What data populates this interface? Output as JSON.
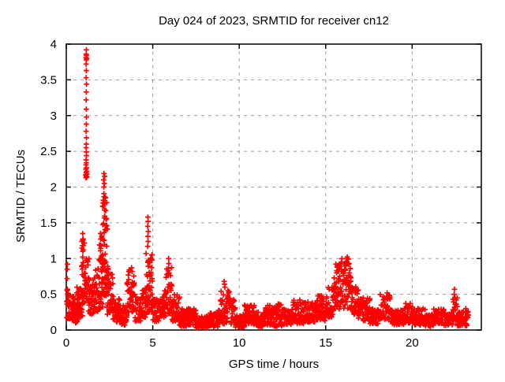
{
  "page_title": "Day 024 of 2023, SRMTID for receiver cn12",
  "chart_data": {
    "type": "scatter",
    "title": "Day 024 of 2023, SRMTID for receiver cn12",
    "xlabel": "GPS time / hours",
    "ylabel": "SRMTID / TECUs",
    "xlim": [
      0,
      24
    ],
    "ylim": [
      0,
      4
    ],
    "xticks": [
      0,
      5,
      10,
      15,
      20
    ],
    "xtick_labels": [
      "0",
      "5",
      "10",
      "15",
      "20"
    ],
    "yticks": [
      0,
      0.5,
      1,
      1.5,
      2,
      2.5,
      3,
      3.5,
      4
    ],
    "ytick_labels": [
      "0",
      "0.5",
      "1",
      "1.5",
      "2",
      "2.5",
      "3",
      "3.5",
      "4"
    ],
    "grid": true,
    "grid_style": "dashed",
    "legend": "none",
    "marker": "plus",
    "marker_color": "#ff0000",
    "border_color": "#000000",
    "grid_color": "#9e9e9e",
    "background_color": "#ffffff",
    "series_name": "SRMTID for receiver cn12",
    "x_data_end": 23.25,
    "y_data_max": 3.92,
    "peak_points": [
      [
        0.07,
        0.92
      ],
      [
        0.06,
        0.85
      ],
      [
        0.05,
        0.72
      ],
      [
        0.95,
        1.35
      ],
      [
        0.96,
        1.26
      ],
      [
        0.94,
        1.18
      ],
      [
        0.96,
        1.1
      ],
      [
        0.95,
        1.02
      ],
      [
        1.16,
        3.92
      ],
      [
        1.15,
        3.86
      ],
      [
        1.17,
        3.84
      ],
      [
        1.14,
        3.81
      ],
      [
        1.18,
        3.8
      ],
      [
        1.16,
        3.78
      ],
      [
        1.15,
        3.72
      ],
      [
        1.16,
        3.63
      ],
      [
        1.15,
        3.53
      ],
      [
        1.17,
        3.44
      ],
      [
        1.16,
        3.33
      ],
      [
        1.15,
        3.22
      ],
      [
        1.16,
        3.09
      ],
      [
        1.17,
        2.98
      ],
      [
        1.16,
        2.88
      ],
      [
        1.15,
        2.78
      ],
      [
        1.17,
        2.69
      ],
      [
        1.16,
        2.6
      ],
      [
        1.15,
        2.55
      ],
      [
        1.16,
        2.49
      ],
      [
        1.17,
        2.44
      ],
      [
        1.15,
        2.38
      ],
      [
        1.16,
        2.34
      ],
      [
        1.14,
        2.31
      ],
      [
        1.17,
        2.27
      ],
      [
        1.13,
        2.25
      ],
      [
        1.18,
        2.22
      ],
      [
        1.15,
        2.2
      ],
      [
        1.2,
        2.18
      ],
      [
        1.12,
        2.17
      ],
      [
        1.16,
        2.15
      ],
      [
        1.19,
        2.14
      ],
      [
        1.14,
        2.13
      ],
      [
        1.98,
        1.35
      ],
      [
        1.99,
        1.27
      ],
      [
        1.97,
        1.19
      ],
      [
        1.98,
        1.11
      ],
      [
        2.18,
        2.19
      ],
      [
        2.22,
        2.15
      ],
      [
        2.16,
        2.1
      ],
      [
        2.2,
        2.05
      ],
      [
        2.17,
        2.0
      ],
      [
        3.78,
        0.87
      ],
      [
        3.8,
        0.82
      ],
      [
        4.72,
        1.58
      ],
      [
        4.73,
        1.52
      ],
      [
        4.71,
        1.45
      ],
      [
        4.74,
        1.38
      ],
      [
        4.72,
        1.31
      ],
      [
        4.73,
        1.24
      ],
      [
        4.71,
        1.17
      ],
      [
        4.95,
        1.05
      ],
      [
        4.96,
        0.98
      ],
      [
        5.92,
        1.0
      ],
      [
        5.93,
        0.93
      ],
      [
        5.91,
        0.86
      ],
      [
        9.13,
        0.68
      ],
      [
        9.15,
        0.64
      ],
      [
        9.17,
        0.6
      ],
      [
        9.35,
        0.55
      ],
      [
        9.38,
        0.52
      ],
      [
        13.5,
        0.42
      ],
      [
        16.25,
        1.02
      ],
      [
        16.3,
        0.99
      ],
      [
        16.2,
        0.96
      ],
      [
        16.35,
        0.93
      ],
      [
        16.15,
        0.9
      ],
      [
        18.55,
        0.52
      ],
      [
        22.45,
        0.57
      ],
      [
        22.43,
        0.5
      ],
      [
        23.1,
        0.3
      ]
    ],
    "density_bands": [
      [
        0.02,
        0.15,
        0.15,
        0.6,
        16
      ],
      [
        0.1,
        0.55,
        0.12,
        0.5,
        40
      ],
      [
        0.35,
        0.75,
        0.1,
        0.45,
        40
      ],
      [
        0.6,
        0.95,
        0.18,
        0.62,
        35
      ],
      [
        0.88,
        1.06,
        0.35,
        1.3,
        22
      ],
      [
        1.05,
        1.32,
        0.4,
        1.0,
        28
      ],
      [
        1.3,
        1.62,
        0.22,
        0.7,
        32
      ],
      [
        1.6,
        1.92,
        0.25,
        0.88,
        35
      ],
      [
        1.9,
        2.12,
        0.3,
        1.3,
        28
      ],
      [
        2.05,
        2.42,
        0.45,
        1.45,
        42
      ],
      [
        2.1,
        2.36,
        1.4,
        1.97,
        26
      ],
      [
        2.35,
        2.72,
        0.22,
        0.8,
        34
      ],
      [
        2.7,
        3.12,
        0.1,
        0.45,
        38
      ],
      [
        3.1,
        3.52,
        0.07,
        0.35,
        38
      ],
      [
        3.5,
        3.95,
        0.25,
        0.85,
        45
      ],
      [
        3.95,
        4.36,
        0.12,
        0.5,
        34
      ],
      [
        4.35,
        4.62,
        0.18,
        0.6,
        25
      ],
      [
        4.6,
        5.0,
        0.25,
        1.1,
        55
      ],
      [
        5.0,
        5.42,
        0.1,
        0.45,
        38
      ],
      [
        5.4,
        5.76,
        0.18,
        0.55,
        32
      ],
      [
        5.75,
        6.12,
        0.22,
        0.88,
        38
      ],
      [
        6.1,
        6.56,
        0.12,
        0.5,
        42
      ],
      [
        6.55,
        7.02,
        0.05,
        0.3,
        48
      ],
      [
        7.0,
        7.52,
        0.07,
        0.32,
        48
      ],
      [
        7.5,
        8.32,
        0.03,
        0.2,
        75
      ],
      [
        8.3,
        8.82,
        0.04,
        0.25,
        48
      ],
      [
        8.8,
        9.32,
        0.08,
        0.55,
        48
      ],
      [
        9.3,
        9.52,
        0.3,
        0.56,
        16
      ],
      [
        9.5,
        9.76,
        0.07,
        0.45,
        22
      ],
      [
        9.75,
        10.32,
        0.04,
        0.22,
        50
      ],
      [
        10.3,
        10.92,
        0.07,
        0.35,
        55
      ],
      [
        10.9,
        11.46,
        0.05,
        0.25,
        50
      ],
      [
        11.45,
        12.02,
        0.07,
        0.35,
        50
      ],
      [
        12.0,
        12.56,
        0.05,
        0.38,
        50
      ],
      [
        12.55,
        13.12,
        0.07,
        0.3,
        50
      ],
      [
        13.1,
        13.76,
        0.09,
        0.42,
        58
      ],
      [
        13.75,
        14.46,
        0.11,
        0.4,
        60
      ],
      [
        14.45,
        15.02,
        0.13,
        0.48,
        52
      ],
      [
        15.0,
        15.46,
        0.18,
        0.6,
        42
      ],
      [
        15.45,
        15.86,
        0.28,
        0.95,
        48
      ],
      [
        15.85,
        16.46,
        0.3,
        1.0,
        62
      ],
      [
        16.45,
        16.92,
        0.22,
        0.65,
        42
      ],
      [
        16.9,
        17.56,
        0.13,
        0.45,
        55
      ],
      [
        17.55,
        18.16,
        0.09,
        0.3,
        50
      ],
      [
        18.15,
        18.76,
        0.15,
        0.5,
        48
      ],
      [
        18.75,
        19.52,
        0.07,
        0.28,
        60
      ],
      [
        19.5,
        20.16,
        0.1,
        0.38,
        52
      ],
      [
        20.15,
        20.76,
        0.07,
        0.3,
        48
      ],
      [
        20.75,
        21.26,
        0.05,
        0.22,
        42
      ],
      [
        21.25,
        21.86,
        0.09,
        0.3,
        48
      ],
      [
        21.85,
        22.36,
        0.06,
        0.25,
        42
      ],
      [
        22.35,
        22.62,
        0.12,
        0.5,
        20
      ],
      [
        22.6,
        23.25,
        0.06,
        0.26,
        55
      ]
    ]
  }
}
